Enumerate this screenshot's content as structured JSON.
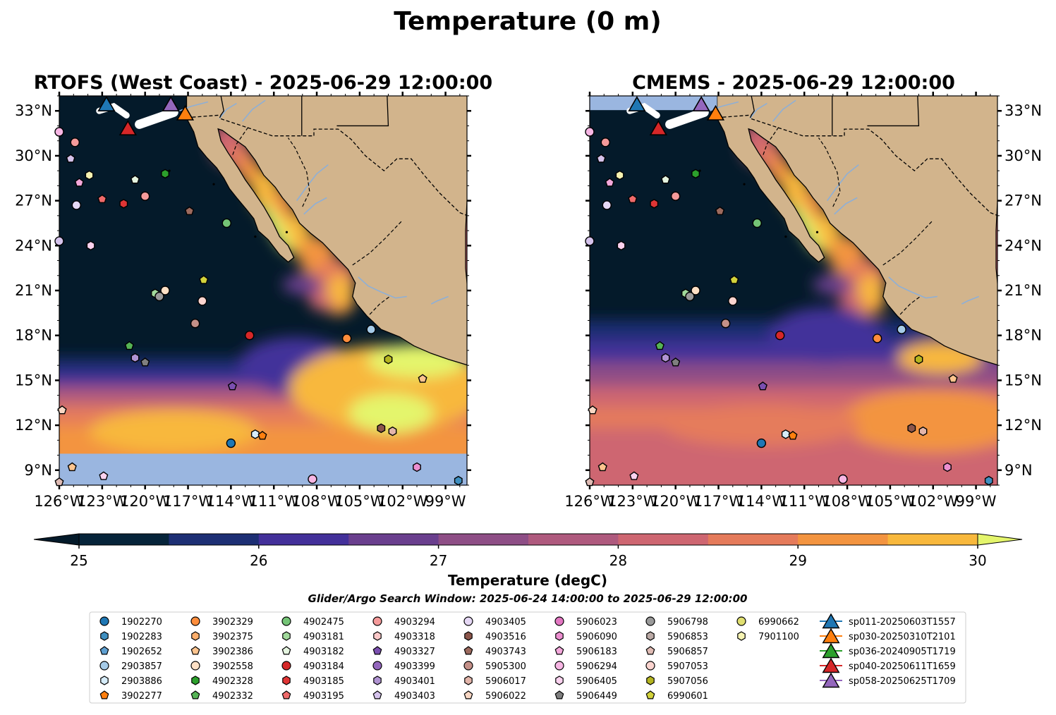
{
  "figure": {
    "title": "Temperature (0 m)"
  },
  "panels": [
    {
      "id": "rtofs",
      "title": "RTOFS (West Coast) - 2025-06-29 12:00:00",
      "nodata_band": "south"
    },
    {
      "id": "cmems",
      "title": "CMEMS - 2025-06-29 12:00:00",
      "nodata_band": "north"
    }
  ],
  "axes": {
    "lon_range": [
      -126,
      -97.5
    ],
    "lat_range": [
      8,
      34
    ],
    "lat_ticks": [
      {
        "v": 33,
        "label": "33°N"
      },
      {
        "v": 30,
        "label": "30°N"
      },
      {
        "v": 27,
        "label": "27°N"
      },
      {
        "v": 24,
        "label": "24°N"
      },
      {
        "v": 21,
        "label": "21°N"
      },
      {
        "v": 18,
        "label": "18°N"
      },
      {
        "v": 15,
        "label": "15°N"
      },
      {
        "v": 12,
        "label": "12°N"
      },
      {
        "v": 9,
        "label": "9°N"
      }
    ],
    "lon_ticks": [
      {
        "v": -126,
        "label": "126°W"
      },
      {
        "v": -123,
        "label": "123°W"
      },
      {
        "v": -120,
        "label": "120°W"
      },
      {
        "v": -117,
        "label": "117°W"
      },
      {
        "v": -114,
        "label": "114°W"
      },
      {
        "v": -111,
        "label": "111°W"
      },
      {
        "v": -108,
        "label": "108°W"
      },
      {
        "v": -105,
        "label": "105°W"
      },
      {
        "v": -102,
        "label": "102°W"
      },
      {
        "v": -99,
        "label": "99°W"
      }
    ]
  },
  "colorbar": {
    "label": "Temperature (degC)",
    "min": 25,
    "max": 30,
    "ticks": [
      {
        "v": 25,
        "label": "25"
      },
      {
        "v": 26,
        "label": "26"
      },
      {
        "v": 27,
        "label": "27"
      },
      {
        "v": 28,
        "label": "28"
      },
      {
        "v": 29,
        "label": "29"
      },
      {
        "v": 30,
        "label": "30"
      }
    ],
    "colors": [
      "#06243a",
      "#1d2f74",
      "#43309a",
      "#6a3f8e",
      "#8e4e86",
      "#af5a7e",
      "#ce6671",
      "#e57b5b",
      "#f39440",
      "#f8b83c"
    ],
    "under_color": "#041a2a",
    "over_color": "#e4f56c"
  },
  "colors": {
    "land": "#d2b48c",
    "nodata": "#9ab6e0",
    "river": "#8eafd6"
  },
  "search_window": "Glider/Argo Search Window: 2025-06-24 14:00:00 to 2025-06-29 12:00:00",
  "legend": [
    {
      "label": "1902270",
      "marker": "circle",
      "color": "#1f77b4"
    },
    {
      "label": "1902283",
      "marker": "hexagon",
      "color": "#3f8fc0"
    },
    {
      "label": "1902652",
      "marker": "pentagon",
      "color": "#5e9fd0"
    },
    {
      "label": "2903857",
      "marker": "circle",
      "color": "#a6cbe8"
    },
    {
      "label": "2903886",
      "marker": "hexagon",
      "color": "#d6ecf9"
    },
    {
      "label": "3902277",
      "marker": "pentagon",
      "color": "#ff7f0e"
    },
    {
      "label": "3902329",
      "marker": "circle",
      "color": "#fd8d3c"
    },
    {
      "label": "3902375",
      "marker": "hexagon",
      "color": "#fdae6b"
    },
    {
      "label": "3902386",
      "marker": "pentagon",
      "color": "#fdc48e"
    },
    {
      "label": "3902558",
      "marker": "circle",
      "color": "#fde0c5"
    },
    {
      "label": "4902328",
      "marker": "hexagon",
      "color": "#2ca02c"
    },
    {
      "label": "4902332",
      "marker": "pentagon",
      "color": "#55b355"
    },
    {
      "label": "4902475",
      "marker": "circle",
      "color": "#74c476"
    },
    {
      "label": "4903181",
      "marker": "hexagon",
      "color": "#a1d99b"
    },
    {
      "label": "4903182",
      "marker": "pentagon",
      "color": "#e5f5e0"
    },
    {
      "label": "4903184",
      "marker": "circle",
      "color": "#d62728"
    },
    {
      "label": "4903185",
      "marker": "hexagon",
      "color": "#e03535"
    },
    {
      "label": "4903195",
      "marker": "pentagon",
      "color": "#ef6a6a"
    },
    {
      "label": "4903294",
      "marker": "circle",
      "color": "#f59a9a"
    },
    {
      "label": "4903318",
      "marker": "hexagon",
      "color": "#fcc9c9"
    },
    {
      "label": "4903327",
      "marker": "pentagon",
      "color": "#7b4fb0"
    },
    {
      "label": "4903399",
      "marker": "circle",
      "color": "#9467bd"
    },
    {
      "label": "4903401",
      "marker": "hexagon",
      "color": "#b093d2"
    },
    {
      "label": "4903403",
      "marker": "pentagon",
      "color": "#d5c3ec"
    },
    {
      "label": "4903405",
      "marker": "circle",
      "color": "#e6d8f5"
    },
    {
      "label": "4903516",
      "marker": "hexagon",
      "color": "#8c564b"
    },
    {
      "label": "4903743",
      "marker": "pentagon",
      "color": "#9c6a5e"
    },
    {
      "label": "5905300",
      "marker": "circle",
      "color": "#c49088"
    },
    {
      "label": "5906017",
      "marker": "hexagon",
      "color": "#e3b5aa"
    },
    {
      "label": "5906022",
      "marker": "pentagon",
      "color": "#f9d7c4"
    },
    {
      "label": "5906023",
      "marker": "circle",
      "color": "#e377c2"
    },
    {
      "label": "5906090",
      "marker": "hexagon",
      "color": "#ec8fd0"
    },
    {
      "label": "5906183",
      "marker": "pentagon",
      "color": "#f3a8db"
    },
    {
      "label": "5906294",
      "marker": "circle",
      "color": "#f7b6e4"
    },
    {
      "label": "5906405",
      "marker": "hexagon",
      "color": "#fbd2ef"
    },
    {
      "label": "5906449",
      "marker": "pentagon",
      "color": "#7f7f7f"
    },
    {
      "label": "5906798",
      "marker": "circle",
      "color": "#9a9a9a"
    },
    {
      "label": "5906853",
      "marker": "hexagon",
      "color": "#bbaaa6"
    },
    {
      "label": "5906857",
      "marker": "pentagon",
      "color": "#e0bcb5"
    },
    {
      "label": "5907053",
      "marker": "circle",
      "color": "#fbd4cf"
    },
    {
      "label": "5907056",
      "marker": "hexagon",
      "color": "#b5b520"
    },
    {
      "label": "6990601",
      "marker": "pentagon",
      "color": "#d2d23b"
    },
    {
      "label": "6990662",
      "marker": "circle",
      "color": "#e0df70"
    },
    {
      "label": "7901100",
      "marker": "hexagon",
      "color": "#f6f3b2"
    },
    {
      "label": "sp011-20250603T1557",
      "marker": "triangle",
      "color": "#1f77b4"
    },
    {
      "label": "sp030-20250310T2101",
      "marker": "triangle",
      "color": "#ff7f0e"
    },
    {
      "label": "sp036-20240905T1719",
      "marker": "triangle",
      "color": "#2ca02c"
    },
    {
      "label": "sp040-20250611T1659",
      "marker": "triangle",
      "color": "#d62728"
    },
    {
      "label": "sp058-20250625T1709",
      "marker": "triangle",
      "color": "#9467bd"
    }
  ],
  "floats": [
    {
      "lon": -126.0,
      "lat": 31.6,
      "marker": "circle",
      "color": "#f7b6e4"
    },
    {
      "lon": -124.9,
      "lat": 30.9,
      "marker": "circle",
      "color": "#f59a9a"
    },
    {
      "lon": -125.2,
      "lat": 29.8,
      "marker": "pentagon",
      "color": "#d5c3ec"
    },
    {
      "lon": -123.9,
      "lat": 28.7,
      "marker": "hexagon",
      "color": "#f6f3b2"
    },
    {
      "lon": -124.6,
      "lat": 28.2,
      "marker": "pentagon",
      "color": "#f3a8db"
    },
    {
      "lon": -123.0,
      "lat": 27.1,
      "marker": "pentagon",
      "color": "#ef6a6a"
    },
    {
      "lon": -124.8,
      "lat": 26.7,
      "marker": "circle",
      "color": "#e6d8f5"
    },
    {
      "lon": -121.5,
      "lat": 26.8,
      "marker": "hexagon",
      "color": "#e03535"
    },
    {
      "lon": -120.0,
      "lat": 27.3,
      "marker": "circle",
      "color": "#f59a9a"
    },
    {
      "lon": -120.7,
      "lat": 28.4,
      "marker": "pentagon",
      "color": "#e5f5e0"
    },
    {
      "lon": -118.6,
      "lat": 28.8,
      "marker": "hexagon",
      "color": "#2ca02c"
    },
    {
      "lon": -116.9,
      "lat": 26.3,
      "marker": "pentagon",
      "color": "#9c6a5e"
    },
    {
      "lon": -114.3,
      "lat": 25.5,
      "marker": "circle",
      "color": "#74c476"
    },
    {
      "lon": -126.0,
      "lat": 24.3,
      "marker": "circle",
      "color": "#d5c3ec"
    },
    {
      "lon": -123.8,
      "lat": 24.0,
      "marker": "hexagon",
      "color": "#fbd2ef"
    },
    {
      "lon": -115.9,
      "lat": 21.7,
      "marker": "pentagon",
      "color": "#d2d23b"
    },
    {
      "lon": -119.3,
      "lat": 20.8,
      "marker": "hexagon",
      "color": "#a1d99b"
    },
    {
      "lon": -118.6,
      "lat": 21.0,
      "marker": "circle",
      "color": "#fde0c5"
    },
    {
      "lon": -119.0,
      "lat": 20.6,
      "marker": "circle",
      "color": "#9a9a9a"
    },
    {
      "lon": -116.0,
      "lat": 20.3,
      "marker": "circle",
      "color": "#fbd4cf"
    },
    {
      "lon": -116.5,
      "lat": 18.8,
      "marker": "circle",
      "color": "#c49088"
    },
    {
      "lon": -112.7,
      "lat": 18.0,
      "marker": "circle",
      "color": "#d62728"
    },
    {
      "lon": -121.1,
      "lat": 17.3,
      "marker": "pentagon",
      "color": "#55b355"
    },
    {
      "lon": -120.7,
      "lat": 16.5,
      "marker": "hexagon",
      "color": "#b093d2"
    },
    {
      "lon": -120.0,
      "lat": 16.2,
      "marker": "pentagon",
      "color": "#7f7f7f"
    },
    {
      "lon": -105.9,
      "lat": 17.8,
      "marker": "circle",
      "color": "#fd8d3c"
    },
    {
      "lon": -104.2,
      "lat": 18.4,
      "marker": "circle",
      "color": "#a6cbe8"
    },
    {
      "lon": -103.0,
      "lat": 16.4,
      "marker": "hexagon",
      "color": "#b5b520"
    },
    {
      "lon": -100.6,
      "lat": 15.1,
      "marker": "pentagon",
      "color": "#fdc48e"
    },
    {
      "lon": -113.9,
      "lat": 14.6,
      "marker": "pentagon",
      "color": "#7b4fb0"
    },
    {
      "lon": -125.8,
      "lat": 13.0,
      "marker": "pentagon",
      "color": "#f9d7c4"
    },
    {
      "lon": -103.5,
      "lat": 11.8,
      "marker": "hexagon",
      "color": "#8c564b"
    },
    {
      "lon": -102.7,
      "lat": 11.6,
      "marker": "hexagon",
      "color": "#e3b5aa"
    },
    {
      "lon": -112.3,
      "lat": 11.4,
      "marker": "hexagon",
      "color": "#d6ecf9"
    },
    {
      "lon": -111.8,
      "lat": 11.3,
      "marker": "pentagon",
      "color": "#ff7f0e"
    },
    {
      "lon": -114.0,
      "lat": 10.8,
      "marker": "circle",
      "color": "#1f77b4"
    },
    {
      "lon": -125.1,
      "lat": 9.2,
      "marker": "pentagon",
      "color": "#fdc48e"
    },
    {
      "lon": -122.9,
      "lat": 8.6,
      "marker": "pentagon",
      "color": "#fbd2ef"
    },
    {
      "lon": -108.3,
      "lat": 8.4,
      "marker": "circle",
      "color": "#f7b6e4"
    },
    {
      "lon": -101.0,
      "lat": 9.2,
      "marker": "hexagon",
      "color": "#ec8fd0"
    },
    {
      "lon": -98.1,
      "lat": 8.3,
      "marker": "hexagon",
      "color": "#3f8fc0"
    },
    {
      "lon": -126.0,
      "lat": 8.2,
      "marker": "pentagon",
      "color": "#e0bcb5"
    }
  ],
  "gliders": [
    {
      "lon": -122.7,
      "lat": 33.4,
      "color": "#1f77b4"
    },
    {
      "lon": -118.2,
      "lat": 33.4,
      "color": "#9467bd"
    },
    {
      "lon": -117.2,
      "lat": 32.8,
      "color": "#ff7f0e"
    },
    {
      "lon": -121.2,
      "lat": 31.8,
      "color": "#d62728"
    }
  ]
}
